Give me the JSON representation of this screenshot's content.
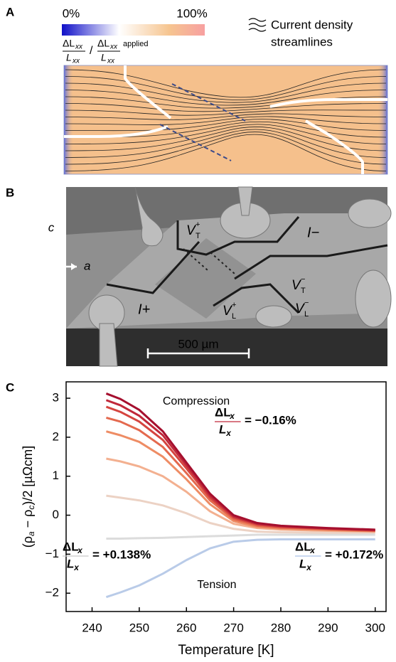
{
  "panel_a": {
    "label": "A",
    "colorbar_min": "0%",
    "colorbar_max": "100%",
    "colorbar_label": {
      "num1": "ΔL",
      "num1_sub": "xx",
      "den1": "L",
      "den1_sub": "xx",
      "slash": "/",
      "num2": "ΔL",
      "num2_sub": "xx",
      "den2": "L",
      "den2_sub": "xx",
      "suffix": "applied"
    },
    "legend_lines": [
      "Current density",
      "streamlines"
    ]
  },
  "panel_b": {
    "label": "B",
    "axis_c": "c",
    "axis_a": "a",
    "terminals": [
      {
        "main": "V",
        "sub": "T",
        "sup": "+"
      },
      {
        "main": "V",
        "sub": "T",
        "sup": "−"
      },
      {
        "main": "V",
        "sub": "L",
        "sup": "−"
      },
      {
        "main": "V",
        "sub": "L",
        "sup": "+"
      }
    ],
    "currents": [
      "I−",
      "I+"
    ],
    "scale_bar": "500 µm"
  },
  "chart_data": {
    "type": "line",
    "panel_label": "C",
    "xlabel": "Temperature [K]",
    "ylabel_parts": [
      "(ρ",
      "a",
      " − ρ",
      "c",
      ")/2  [µΩcm]"
    ],
    "x": [
      243,
      246,
      250,
      255,
      260,
      265,
      270,
      275,
      280,
      290,
      300
    ],
    "series": [
      {
        "color": "#a50f2e",
        "values": [
          3.12,
          2.98,
          2.7,
          2.15,
          1.35,
          0.55,
          0.0,
          -0.2,
          -0.27,
          -0.33,
          -0.37
        ]
      },
      {
        "color": "#c0283a",
        "values": [
          2.95,
          2.82,
          2.55,
          2.05,
          1.28,
          0.5,
          -0.03,
          -0.22,
          -0.28,
          -0.34,
          -0.38
        ]
      },
      {
        "color": "#d5443f",
        "values": [
          2.78,
          2.65,
          2.4,
          1.93,
          1.2,
          0.45,
          -0.06,
          -0.24,
          -0.3,
          -0.35,
          -0.39
        ]
      },
      {
        "color": "#e4694e",
        "values": [
          2.5,
          2.4,
          2.18,
          1.75,
          1.08,
          0.38,
          -0.1,
          -0.27,
          -0.32,
          -0.36,
          -0.4
        ]
      },
      {
        "color": "#ee8c64",
        "values": [
          2.15,
          2.05,
          1.88,
          1.5,
          0.92,
          0.28,
          -0.15,
          -0.3,
          -0.34,
          -0.38,
          -0.41
        ]
      },
      {
        "color": "#f3b090",
        "values": [
          1.45,
          1.38,
          1.25,
          1.0,
          0.6,
          0.1,
          -0.22,
          -0.33,
          -0.37,
          -0.4,
          -0.42
        ]
      },
      {
        "color": "#ecd2c4",
        "values": [
          0.5,
          0.45,
          0.38,
          0.25,
          0.05,
          -0.2,
          -0.35,
          -0.42,
          -0.44,
          -0.45,
          -0.45
        ]
      },
      {
        "color": "#dcdcdc",
        "values": [
          -0.6,
          -0.6,
          -0.59,
          -0.58,
          -0.56,
          -0.54,
          -0.52,
          -0.5,
          -0.5,
          -0.5,
          -0.5
        ]
      },
      {
        "color": "#b9cbe8",
        "values": [
          -2.1,
          -1.98,
          -1.8,
          -1.5,
          -1.15,
          -0.85,
          -0.68,
          -0.63,
          -0.62,
          -0.62,
          -0.62
        ]
      }
    ],
    "xlim": [
      234.5,
      302.3
    ],
    "ylim": [
      -2.47,
      3.42
    ],
    "xticks": [
      240,
      250,
      260,
      270,
      280,
      290,
      300
    ],
    "yticks": [
      {
        "value": -2,
        "label": "−2"
      },
      {
        "value": -1,
        "label": "−1"
      },
      0,
      1,
      2,
      3
    ],
    "annotations": [
      {
        "text": "Compression",
        "color": "#c0283a"
      },
      {
        "text": "Tension",
        "color": "#6a6fd0"
      }
    ],
    "strain_labels": [
      {
        "num": "ΔL",
        "num_sub": "x",
        "den": "L",
        "den_sub": "x",
        "text": "= −0.16%",
        "color": "#c0283a"
      },
      {
        "num": "ΔL",
        "num_sub": "x",
        "den": "L",
        "den_sub": "x",
        "text": "= +0.138%",
        "color": "#c8c8c8"
      },
      {
        "num": "ΔL",
        "num_sub": "x",
        "den": "L",
        "den_sub": "x",
        "text": "= +0.172%",
        "color": "#a9c1e8"
      }
    ]
  }
}
